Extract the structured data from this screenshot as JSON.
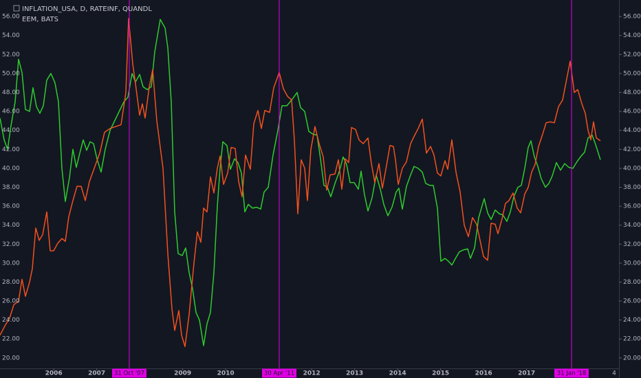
{
  "chart_data": {
    "type": "line",
    "legend": [
      "INFLATION_USA, D, RATEINF, QUANDL",
      "EEM, BATS"
    ],
    "edge_label": "4",
    "xlim": [
      2004.75,
      2019.15
    ],
    "xticks": [
      2006,
      2007,
      2009,
      2010,
      2012,
      2013,
      2014,
      2015,
      2016,
      2017
    ],
    "ylim": [
      18.9,
      57.75
    ],
    "y2lim": [
      18.9,
      57.75
    ],
    "yticks": [
      {
        "value": 20,
        "label": "20.00"
      },
      {
        "value": 22,
        "label": "22.00"
      },
      {
        "value": 24,
        "label": "24.00"
      },
      {
        "value": 26,
        "label": "26.00"
      },
      {
        "value": 28,
        "label": "28.00"
      },
      {
        "value": 30,
        "label": "30.00"
      },
      {
        "value": 32,
        "label": "32.00"
      },
      {
        "value": 34,
        "label": "34.00"
      },
      {
        "value": 36,
        "label": "36.00"
      },
      {
        "value": 38,
        "label": "38.00"
      },
      {
        "value": 40,
        "label": "40.00"
      },
      {
        "value": 42,
        "label": "42.00"
      },
      {
        "value": 44,
        "label": "44.00"
      },
      {
        "value": 46,
        "label": "46.00"
      },
      {
        "value": 48,
        "label": "48.00"
      },
      {
        "value": 50,
        "label": "50.00"
      },
      {
        "value": 52,
        "label": "52.00"
      },
      {
        "value": 54,
        "label": "54.00"
      },
      {
        "value": 56,
        "label": "56.00"
      }
    ],
    "y2ticks": [
      {
        "value": 20,
        "label": "20.00"
      },
      {
        "value": 22,
        "label": "22.00"
      },
      {
        "value": 24,
        "label": "24.00"
      },
      {
        "value": 26,
        "label": "26.00"
      },
      {
        "value": 28,
        "label": "28.00"
      },
      {
        "value": 30,
        "label": "30.00"
      },
      {
        "value": 32,
        "label": "32.00"
      },
      {
        "value": 34,
        "label": "34.00"
      },
      {
        "value": 36,
        "label": "36.00"
      },
      {
        "value": 38,
        "label": "38.00"
      },
      {
        "value": 40,
        "label": "40.00"
      },
      {
        "value": 42,
        "label": "42.00"
      },
      {
        "value": 44,
        "label": "44.00"
      },
      {
        "value": 46,
        "label": "46.00"
      },
      {
        "value": 48,
        "label": "48.00"
      },
      {
        "value": 50,
        "label": "50.00"
      },
      {
        "value": 52,
        "label": "52.00"
      },
      {
        "value": 54,
        "label": "54.00"
      },
      {
        "value": 56,
        "label": "56.00"
      }
    ],
    "annotations": [
      {
        "x": 2007.758,
        "label": "31 Oct '07"
      },
      {
        "x": 2011.246,
        "label": "30 Apr '11"
      },
      {
        "x": 2018.046,
        "label": "31 Jan '18"
      }
    ],
    "annotation_color": "#e100e6",
    "series": [
      {
        "name": "INFLATION_USA, D, RATEINF, QUANDL",
        "color": "#f4511e",
        "x": [
          2004.75,
          2004.878,
          2004.974,
          2005.07,
          2005.182,
          2005.262,
          2005.342,
          2005.438,
          2005.502,
          2005.582,
          2005.662,
          2005.742,
          2005.838,
          2005.918,
          2005.998,
          2006.094,
          2006.19,
          2006.27,
          2006.35,
          2006.446,
          2006.542,
          2006.638,
          2006.734,
          2006.83,
          2006.942,
          2007.07,
          2007.182,
          2007.31,
          2007.566,
          2007.678,
          2007.742,
          2007.838,
          2007.902,
          2007.998,
          2008.062,
          2008.126,
          2008.222,
          2008.302,
          2008.398,
          2008.542,
          2008.654,
          2008.75,
          2008.814,
          2008.91,
          2008.974,
          2009.054,
          2009.15,
          2009.262,
          2009.342,
          2009.422,
          2009.486,
          2009.566,
          2009.646,
          2009.726,
          2009.806,
          2009.87,
          2009.95,
          2010.046,
          2010.126,
          2010.222,
          2010.302,
          2010.382,
          2010.462,
          2010.574,
          2010.654,
          2010.75,
          2010.83,
          2010.91,
          2011.022,
          2011.118,
          2011.246,
          2011.342,
          2011.438,
          2011.534,
          2011.598,
          2011.678,
          2011.758,
          2011.838,
          2011.902,
          2011.982,
          2012.078,
          2012.174,
          2012.27,
          2012.35,
          2012.43,
          2012.542,
          2012.622,
          2012.702,
          2012.782,
          2012.862,
          2012.926,
          2013.022,
          2013.102,
          2013.198,
          2013.31,
          2013.39,
          2013.47,
          2013.566,
          2013.646,
          2013.742,
          2013.822,
          2013.902,
          2013.95,
          2014.014,
          2014.11,
          2014.206,
          2014.302,
          2014.398,
          2014.478,
          2014.574,
          2014.67,
          2014.766,
          2014.846,
          2014.926,
          2015.006,
          2015.102,
          2015.166,
          2015.262,
          2015.358,
          2015.454,
          2015.55,
          2015.646,
          2015.742,
          2015.838,
          2015.918,
          2015.998,
          2016.094,
          2016.174,
          2016.27,
          2016.334,
          2016.43,
          2016.51,
          2016.59,
          2016.686,
          2016.782,
          2016.862,
          2016.958,
          2017.038,
          2017.118,
          2017.198,
          2017.278,
          2017.374,
          2017.454,
          2017.55,
          2017.646,
          2017.742,
          2017.838,
          2018.014,
          2018.11,
          2018.19,
          2018.286,
          2018.366,
          2018.43,
          2018.494,
          2018.558,
          2018.622,
          2018.718
        ],
        "values": [
          22.4,
          23.5,
          24.2,
          25.6,
          26.0,
          28.3,
          26.5,
          28.0,
          29.4,
          33.7,
          32.4,
          33.0,
          35.4,
          31.3,
          31.3,
          32.1,
          32.6,
          32.3,
          34.9,
          36.6,
          38.1,
          38.1,
          36.6,
          38.6,
          40.0,
          41.6,
          43.8,
          44.2,
          44.6,
          48.0,
          55.8,
          51.0,
          48.9,
          45.6,
          46.8,
          45.3,
          48.6,
          50.4,
          45.0,
          40.0,
          31.0,
          25.2,
          22.9,
          25.0,
          22.4,
          21.2,
          24.6,
          30.0,
          33.3,
          32.2,
          35.8,
          35.4,
          39.1,
          37.4,
          40.0,
          41.3,
          38.3,
          39.5,
          42.2,
          42.1,
          38.6,
          37.0,
          41.4,
          39.9,
          44.7,
          46.1,
          44.2,
          46.1,
          45.9,
          48.5,
          50.1,
          48.4,
          47.6,
          47.2,
          43.0,
          35.2,
          40.9,
          40.0,
          36.6,
          42.0,
          44.4,
          42.6,
          41.2,
          37.7,
          39.3,
          39.4,
          40.9,
          37.8,
          41.0,
          40.6,
          44.3,
          44.1,
          43.0,
          42.6,
          43.2,
          40.5,
          38.5,
          40.5,
          37.9,
          40.3,
          42.4,
          42.3,
          40.9,
          38.3,
          40.0,
          40.7,
          42.6,
          43.5,
          44.2,
          45.2,
          41.6,
          42.3,
          41.4,
          39.5,
          39.2,
          40.8,
          39.9,
          43.0,
          39.6,
          37.5,
          34.0,
          32.8,
          34.8,
          34.1,
          32.4,
          30.7,
          30.3,
          34.2,
          34.1,
          33.1,
          34.7,
          36.3,
          36.6,
          37.4,
          35.8,
          35.3,
          37.3,
          38.0,
          39.6,
          40.4,
          42.3,
          43.6,
          44.8,
          44.9,
          44.8,
          46.5,
          47.2,
          51.3,
          48.0,
          48.3,
          46.8,
          45.8,
          44.0,
          43.0,
          44.9,
          43.2,
          42.9
        ]
      },
      {
        "name": "EEM, BATS",
        "color": "#2ecc2e",
        "axis": "y2",
        "x": [
          2004.75,
          2004.846,
          2004.926,
          2005.006,
          2005.102,
          2005.182,
          2005.262,
          2005.342,
          2005.438,
          2005.518,
          2005.598,
          2005.678,
          2005.758,
          2005.838,
          2005.934,
          2006.03,
          2006.11,
          2006.19,
          2006.27,
          2006.366,
          2006.446,
          2006.526,
          2006.606,
          2006.686,
          2006.766,
          2006.846,
          2006.926,
          2007.006,
          2007.102,
          2007.198,
          2007.31,
          2007.47,
          2007.63,
          2007.726,
          2007.822,
          2007.902,
          2007.998,
          2008.078,
          2008.174,
          2008.27,
          2008.35,
          2008.478,
          2008.59,
          2008.654,
          2008.734,
          2008.814,
          2008.894,
          2008.99,
          2009.07,
          2009.15,
          2009.23,
          2009.31,
          2009.39,
          2009.486,
          2009.566,
          2009.646,
          2009.726,
          2009.806,
          2009.87,
          2009.934,
          2010.03,
          2010.11,
          2010.206,
          2010.286,
          2010.366,
          2010.446,
          2010.526,
          2010.622,
          2010.718,
          2010.814,
          2010.894,
          2010.99,
          2011.102,
          2011.214,
          2011.31,
          2011.422,
          2011.534,
          2011.662,
          2011.742,
          2011.838,
          2011.934,
          2012.03,
          2012.126,
          2012.206,
          2012.286,
          2012.366,
          2012.446,
          2012.542,
          2012.638,
          2012.734,
          2012.814,
          2012.894,
          2012.99,
          2013.086,
          2013.15,
          2013.23,
          2013.31,
          2013.406,
          2013.502,
          2013.598,
          2013.678,
          2013.774,
          2013.87,
          2013.966,
          2014.03,
          2014.11,
          2014.206,
          2014.302,
          2014.382,
          2014.478,
          2014.574,
          2014.654,
          2014.75,
          2014.83,
          2014.926,
          2015.006,
          2015.102,
          2015.182,
          2015.262,
          2015.358,
          2015.438,
          2015.534,
          2015.63,
          2015.694,
          2015.79,
          2015.886,
          2016.014,
          2016.094,
          2016.174,
          2016.27,
          2016.366,
          2016.446,
          2016.542,
          2016.622,
          2016.702,
          2016.798,
          2016.878,
          2016.958,
          2017.038,
          2017.102,
          2017.182,
          2017.262,
          2017.342,
          2017.438,
          2017.518,
          2017.598,
          2017.694,
          2017.79,
          2017.886,
          2017.982,
          2018.078,
          2018.174,
          2018.27,
          2018.35,
          2018.43,
          2018.526,
          2018.606,
          2018.718
        ],
        "values": [
          45.3,
          43.0,
          42.0,
          44.5,
          47.0,
          51.5,
          50.1,
          46.2,
          46.0,
          48.5,
          46.5,
          45.8,
          46.6,
          49.3,
          50.0,
          49.0,
          47.0,
          40.0,
          36.5,
          39.0,
          42.0,
          40.1,
          41.6,
          43.0,
          41.9,
          42.8,
          42.6,
          41.0,
          39.6,
          42.0,
          44.0,
          45.5,
          47.0,
          47.5,
          50.0,
          49.1,
          49.9,
          48.6,
          48.3,
          48.6,
          52.3,
          55.7,
          54.8,
          52.7,
          47.0,
          35.4,
          31.0,
          30.8,
          31.6,
          29.0,
          27.3,
          24.8,
          24.0,
          21.3,
          23.6,
          24.8,
          29.0,
          36.0,
          40.0,
          42.8,
          42.4,
          39.9,
          41.0,
          40.6,
          39.5,
          35.4,
          36.2,
          35.8,
          35.9,
          35.7,
          37.5,
          38.0,
          41.4,
          44.0,
          46.6,
          46.6,
          47.2,
          48.0,
          46.4,
          46.0,
          43.9,
          43.6,
          43.5,
          41.0,
          38.2,
          38.0,
          37.0,
          38.4,
          39.6,
          41.2,
          40.4,
          38.5,
          38.5,
          37.8,
          39.7,
          37.2,
          35.5,
          36.9,
          39.3,
          37.8,
          36.2,
          35.0,
          35.9,
          37.5,
          37.9,
          35.7,
          38.1,
          39.3,
          40.2,
          40.0,
          39.6,
          38.4,
          38.2,
          38.2,
          35.8,
          30.2,
          30.5,
          30.2,
          29.8,
          30.6,
          31.2,
          31.4,
          31.5,
          30.5,
          31.6,
          34.8,
          36.8,
          35.3,
          34.6,
          35.6,
          35.2,
          35.1,
          34.4,
          35.4,
          37.0,
          38.0,
          38.2,
          40.0,
          42.2,
          42.9,
          41.2,
          40.2,
          38.9,
          38.0,
          38.4,
          39.2,
          40.6,
          39.8,
          40.5,
          40.1,
          40.0,
          40.7,
          41.3,
          41.7,
          43.2,
          43.5,
          42.5,
          40.9
        ]
      }
    ]
  }
}
